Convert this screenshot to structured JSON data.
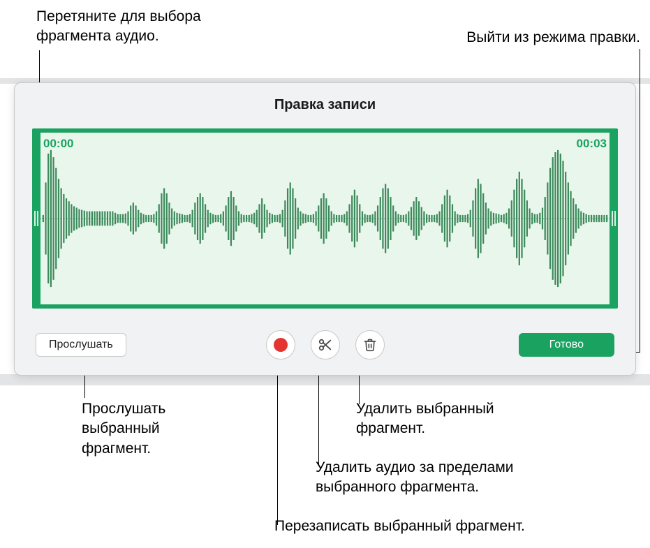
{
  "callouts": {
    "drag_select": "Перетяните для выбора\nфрагмента аудио.",
    "exit_edit": "Выйти из режима правки.",
    "listen": "Прослушать\nвыбранный\nфрагмент.",
    "delete_selected": "Удалить выбранный\nфрагмент.",
    "delete_outside": "Удалить аудио за пределами\nвыбранного фрагмента.",
    "rerecord": "Перезаписать выбранный фрагмент."
  },
  "panel": {
    "title": "Правка записи",
    "time_start": "00:00",
    "time_end": "00:03",
    "listen_label": "Прослушать",
    "done_label": "Готово"
  },
  "colors": {
    "accent": "#1aa260",
    "panel_bg": "#f1f2f3",
    "wave_bg": "#e9f6eb",
    "record_red": "#e53530",
    "icon_gray": "#4a4a4a"
  },
  "waveform": {
    "bar_count": 220,
    "bar_color": "#3c8a5c",
    "amplitudes_pattern": [
      0.05,
      0.5,
      0.9,
      0.95,
      0.85,
      0.7,
      0.55,
      0.42,
      0.34,
      0.28,
      0.24,
      0.2,
      0.17,
      0.15,
      0.13,
      0.12,
      0.11,
      0.1,
      0.1,
      0.1,
      0.1,
      0.1,
      0.1,
      0.1,
      0.1,
      0.1,
      0.1,
      0.1,
      0.08,
      0.06,
      0.06,
      0.06,
      0.07,
      0.1,
      0.18,
      0.22,
      0.18,
      0.12,
      0.08,
      0.06,
      0.05,
      0.05,
      0.05,
      0.06,
      0.1,
      0.2,
      0.35,
      0.42,
      0.35,
      0.22,
      0.14,
      0.1,
      0.08,
      0.07,
      0.06,
      0.05,
      0.05,
      0.06,
      0.12,
      0.22,
      0.3,
      0.35,
      0.3,
      0.2,
      0.12,
      0.08,
      0.06,
      0.05,
      0.05,
      0.06,
      0.1,
      0.18,
      0.3,
      0.38,
      0.3,
      0.18,
      0.1,
      0.06,
      0.05,
      0.05,
      0.05,
      0.06,
      0.08,
      0.12,
      0.2,
      0.28,
      0.2,
      0.12,
      0.08,
      0.06,
      0.05,
      0.05,
      0.06,
      0.12,
      0.25,
      0.42,
      0.5,
      0.42,
      0.28,
      0.15,
      0.1,
      0.07,
      0.06,
      0.05,
      0.05,
      0.06,
      0.1,
      0.18,
      0.28,
      0.35,
      0.28,
      0.18,
      0.1,
      0.06,
      0.05,
      0.05,
      0.05,
      0.06,
      0.1,
      0.2,
      0.32,
      0.4,
      0.32,
      0.2,
      0.1,
      0.06,
      0.05,
      0.05,
      0.06,
      0.1,
      0.18,
      0.3,
      0.42,
      0.48,
      0.42,
      0.3,
      0.18,
      0.1,
      0.06,
      0.05,
      0.05,
      0.06,
      0.1,
      0.16,
      0.24,
      0.3,
      0.24,
      0.16,
      0.1,
      0.06,
      0.05,
      0.05,
      0.05,
      0.06,
      0.1,
      0.2,
      0.32,
      0.4,
      0.32,
      0.2,
      0.1,
      0.06,
      0.05,
      0.05,
      0.05,
      0.06,
      0.12,
      0.25,
      0.42,
      0.55,
      0.48,
      0.35,
      0.22,
      0.14,
      0.1,
      0.08,
      0.07,
      0.06,
      0.05,
      0.06,
      0.08,
      0.14,
      0.25,
      0.4,
      0.55,
      0.65,
      0.55,
      0.4,
      0.25,
      0.14,
      0.08,
      0.06,
      0.06,
      0.08,
      0.15,
      0.3,
      0.5,
      0.7,
      0.85,
      0.92,
      0.95,
      0.9,
      0.8,
      0.65,
      0.5,
      0.38,
      0.28,
      0.2,
      0.14,
      0.1,
      0.08,
      0.06,
      0.05,
      0.05,
      0.05,
      0.05,
      0.05,
      0.05,
      0.05,
      0.05
    ]
  }
}
